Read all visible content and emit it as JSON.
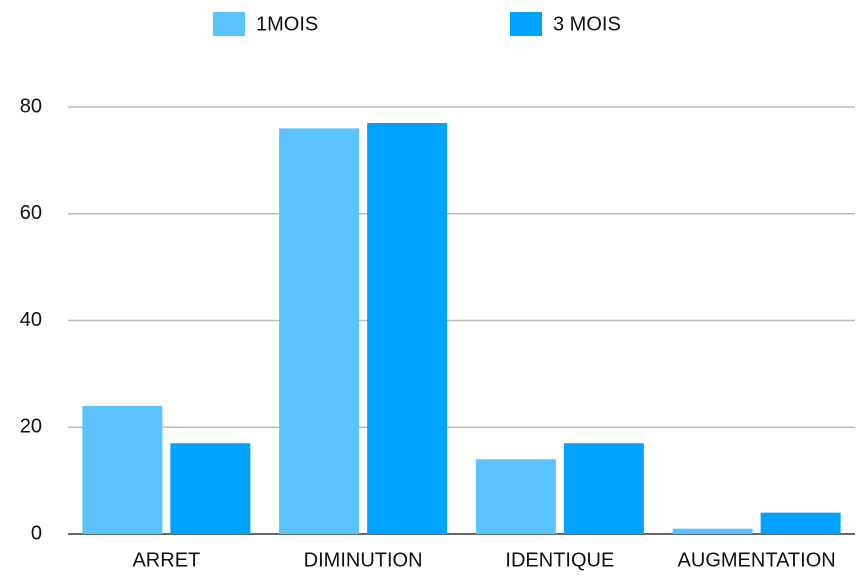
{
  "chart_data": {
    "type": "bar",
    "categories": [
      "ARRET",
      "DIMINUTION",
      "IDENTIQUE",
      "AUGMENTATION"
    ],
    "series": [
      {
        "name": "1MOIS",
        "color": "#5ac2fd",
        "values": [
          24,
          76,
          14,
          1
        ]
      },
      {
        "name": "3 MOIS",
        "color": "#00a2ff",
        "values": [
          17,
          77,
          17,
          4
        ]
      }
    ],
    "ylim": [
      0,
      80
    ],
    "yticks": [
      0,
      20,
      40,
      60,
      80
    ],
    "grid": true,
    "legend": "top"
  }
}
